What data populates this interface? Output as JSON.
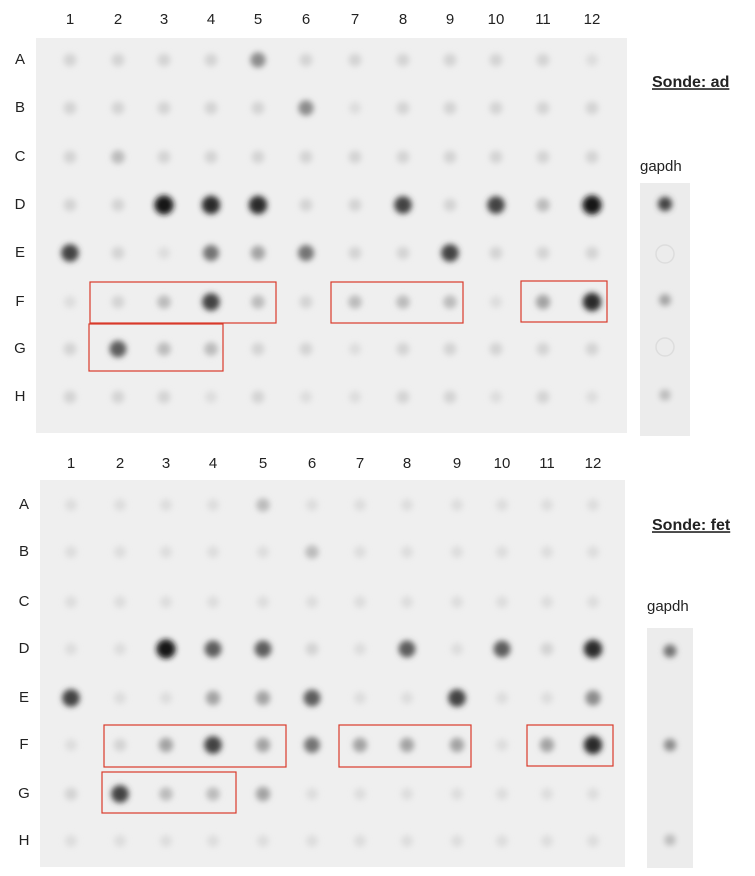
{
  "panels": [
    {
      "columns": [
        "1",
        "2",
        "3",
        "4",
        "5",
        "6",
        "7",
        "8",
        "9",
        "10",
        "11",
        "12"
      ],
      "rows": [
        "A",
        "B",
        "C",
        "D",
        "E",
        "F",
        "G",
        "H"
      ],
      "probe": "Sonde: ad",
      "control_label": "gapdh"
    },
    {
      "columns": [
        "1",
        "2",
        "3",
        "4",
        "5",
        "6",
        "7",
        "8",
        "9",
        "10",
        "11",
        "12"
      ],
      "rows": [
        "A",
        "B",
        "C",
        "D",
        "E",
        "F",
        "G",
        "H"
      ],
      "probe": "Sonde: fet",
      "control_label": "gapdh"
    }
  ]
}
